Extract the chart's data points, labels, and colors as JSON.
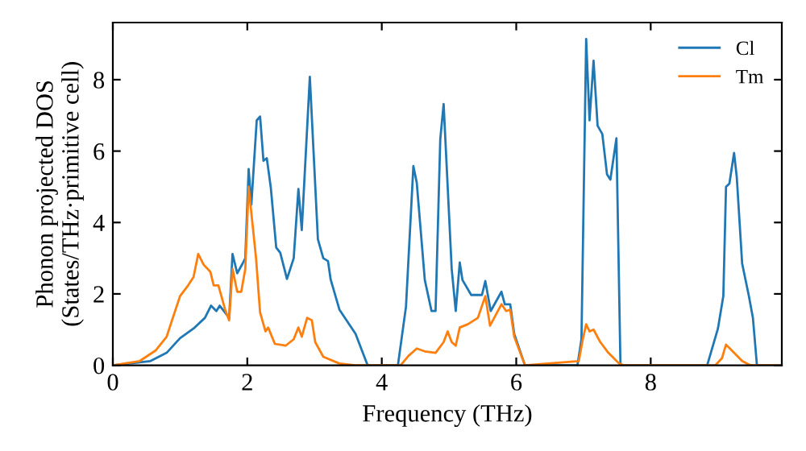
{
  "chart_data": {
    "type": "line",
    "xlabel": "Frequency (THz)",
    "ylabel": "Phonon projected DOS\n(States/THz·primitive cell)",
    "xlim": [
      0,
      9.95
    ],
    "ylim": [
      0,
      9.6
    ],
    "xticks": [
      0,
      2,
      4,
      6,
      8
    ],
    "yticks": [
      0,
      2,
      4,
      6,
      8
    ],
    "grid": false,
    "legend": "top right",
    "marker": "none",
    "line_style": "solid",
    "series": [
      {
        "name": "Cl",
        "color": "#1f77b4",
        "x": [
          0,
          0.56,
          0.8,
          1.0,
          1.2,
          1.37,
          1.46,
          1.54,
          1.59,
          1.73,
          1.78,
          1.85,
          1.93,
          1.97,
          2.02,
          2.06,
          2.14,
          2.19,
          2.24,
          2.29,
          2.35,
          2.43,
          2.49,
          2.59,
          2.69,
          2.76,
          2.81,
          2.93,
          3.05,
          3.13,
          3.2,
          3.24,
          3.37,
          3.61,
          3.78,
          3.79,
          4.24,
          4.36,
          4.47,
          4.52,
          4.64,
          4.74,
          4.8,
          4.87,
          4.92,
          5.04,
          5.1,
          5.16,
          5.2,
          5.33,
          5.49,
          5.54,
          5.62,
          5.78,
          5.83,
          5.91,
          5.97,
          6.13,
          6.91,
          6.97,
          7.04,
          7.09,
          7.15,
          7.21,
          7.28,
          7.35,
          7.4,
          7.49,
          7.55,
          8.84,
          9.0,
          9.08,
          9.12,
          9.17,
          9.24,
          9.28,
          9.36,
          9.46,
          9.52,
          9.58,
          9.95
        ],
        "values": [
          0,
          0.12,
          0.35,
          0.76,
          1.03,
          1.33,
          1.67,
          1.52,
          1.67,
          1.33,
          3.12,
          2.58,
          2.85,
          3.0,
          5.5,
          4.5,
          6.86,
          6.97,
          5.73,
          5.8,
          4.97,
          3.3,
          3.15,
          2.42,
          3.0,
          4.94,
          3.79,
          8.08,
          3.53,
          3.0,
          2.92,
          2.4,
          1.56,
          0.88,
          0.05,
          0,
          0,
          1.64,
          5.58,
          5.12,
          2.39,
          1.52,
          1.52,
          6.33,
          7.32,
          2.7,
          1.52,
          2.88,
          2.39,
          1.97,
          1.97,
          2.36,
          1.52,
          2.06,
          1.71,
          1.71,
          0.88,
          0,
          0,
          0.73,
          9.14,
          6.86,
          8.53,
          6.71,
          6.48,
          5.35,
          5.2,
          6.36,
          0,
          0,
          1.03,
          1.94,
          5.0,
          5.09,
          5.95,
          5.27,
          2.85,
          1.94,
          1.33,
          0,
          0
        ]
      },
      {
        "name": "Tm",
        "color": "#ff7f0e",
        "x": [
          0,
          0.4,
          0.64,
          0.8,
          0.88,
          1.0,
          1.12,
          1.2,
          1.27,
          1.35,
          1.45,
          1.5,
          1.57,
          1.67,
          1.73,
          1.78,
          1.85,
          1.91,
          1.97,
          2.02,
          2.13,
          2.19,
          2.27,
          2.31,
          2.41,
          2.57,
          2.69,
          2.76,
          2.81,
          2.89,
          2.96,
          3.01,
          3.13,
          3.37,
          3.61,
          4.28,
          4.4,
          4.52,
          4.64,
          4.8,
          4.92,
          4.98,
          5.04,
          5.1,
          5.16,
          5.28,
          5.43,
          5.54,
          5.61,
          5.78,
          5.85,
          5.91,
          5.97,
          6.13,
          6.93,
          6.99,
          7.04,
          7.09,
          7.15,
          7.25,
          7.37,
          7.53,
          7.6,
          8.96,
          9.06,
          9.12,
          9.24,
          9.36,
          9.48,
          9.95
        ],
        "values": [
          0,
          0.12,
          0.42,
          0.8,
          1.26,
          1.94,
          2.24,
          2.47,
          3.12,
          2.82,
          2.62,
          2.24,
          2.24,
          1.56,
          1.26,
          2.7,
          2.06,
          2.06,
          2.7,
          5.0,
          3.0,
          1.48,
          0.95,
          1.06,
          0.6,
          0.55,
          0.73,
          1.06,
          0.8,
          1.33,
          1.26,
          0.65,
          0.24,
          0.05,
          0,
          0,
          0.27,
          0.47,
          0.39,
          0.35,
          0.65,
          0.95,
          0.65,
          0.55,
          1.06,
          1.15,
          1.33,
          1.94,
          1.11,
          1.71,
          1.52,
          1.56,
          0.8,
          0,
          0.12,
          0.73,
          1.15,
          0.95,
          1.0,
          0.65,
          0.35,
          0.05,
          0,
          0,
          0.2,
          0.58,
          0.35,
          0.12,
          0,
          0
        ]
      }
    ]
  }
}
